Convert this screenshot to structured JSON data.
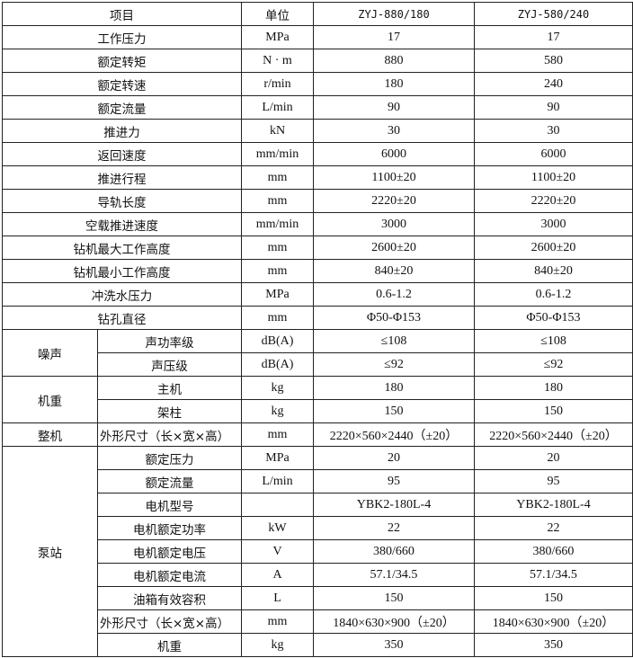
{
  "header": {
    "item": "项目",
    "unit": "单位",
    "model_a": "ZYJ-880/180",
    "model_b": "ZYJ-580/240"
  },
  "rows": [
    {
      "item": "工作压力",
      "unit": "MPa",
      "a": "17",
      "b": "17"
    },
    {
      "item": "额定转矩",
      "unit": "N · m",
      "a": "880",
      "b": "580"
    },
    {
      "item": "额定转速",
      "unit": "r/min",
      "a": "180",
      "b": "240"
    },
    {
      "item": "额定流量",
      "unit": "L/min",
      "a": "90",
      "b": "90"
    },
    {
      "item": "推进力",
      "unit": "kN",
      "a": "30",
      "b": "30"
    },
    {
      "item": "返回速度",
      "unit": "mm/min",
      "a": "6000",
      "b": "6000"
    },
    {
      "item": "推进行程",
      "unit": "mm",
      "a": "1100±20",
      "b": "1100±20"
    },
    {
      "item": "导轨长度",
      "unit": "mm",
      "a": "2220±20",
      "b": "2220±20"
    },
    {
      "item": "空载推进速度",
      "unit": "mm/min",
      "a": "3000",
      "b": "3000"
    },
    {
      "item": "钻机最大工作高度",
      "unit": "mm",
      "a": "2600±20",
      "b": "2600±20"
    },
    {
      "item": "钻机最小工作高度",
      "unit": "mm",
      "a": "840±20",
      "b": "840±20"
    },
    {
      "item": "冲洗水压力",
      "unit": "MPa",
      "a": "0.6-1.2",
      "b": "0.6-1.2"
    },
    {
      "item": "钻孔直径",
      "unit": "mm",
      "a": "Φ50-Φ153",
      "b": "Φ50-Φ153"
    }
  ],
  "groups": [
    {
      "label": "噪声",
      "rows": [
        {
          "item": "声功率级",
          "unit": "dB(A)",
          "a": "≤108",
          "b": "≤108"
        },
        {
          "item": "声压级",
          "unit": "dB(A)",
          "a": "≤92",
          "b": "≤92"
        }
      ]
    },
    {
      "label": "机重",
      "rows": [
        {
          "item": "主机",
          "unit": "kg",
          "a": "180",
          "b": "180"
        },
        {
          "item": "架柱",
          "unit": "kg",
          "a": "150",
          "b": "150"
        }
      ]
    },
    {
      "label": "整机",
      "rows": [
        {
          "item": "外形尺寸（长×宽×高）",
          "unit": "mm",
          "a": "2220×560×2440（±20）",
          "b": "2220×560×2440（±20）"
        }
      ]
    },
    {
      "label": "泵站",
      "rows": [
        {
          "item": "额定压力",
          "unit": "MPa",
          "a": "20",
          "b": "20"
        },
        {
          "item": "额定流量",
          "unit": "L/min",
          "a": "95",
          "b": "95"
        },
        {
          "item": "电机型号",
          "unit": "",
          "a": "YBK2-180L-4",
          "b": "YBK2-180L-4"
        },
        {
          "item": "电机额定功率",
          "unit": "kW",
          "a": "22",
          "b": "22"
        },
        {
          "item": "电机额定电压",
          "unit": "V",
          "a": "380/660",
          "b": "380/660"
        },
        {
          "item": "电机额定电流",
          "unit": "A",
          "a": "57.1/34.5",
          "b": "57.1/34.5"
        },
        {
          "item": "油箱有效容积",
          "unit": "L",
          "a": "150",
          "b": "150"
        },
        {
          "item": "外形尺寸（长×宽×高）",
          "unit": "mm",
          "a": "1840×630×900（±20）",
          "b": "1840×630×900（±20）"
        },
        {
          "item": "机重",
          "unit": "kg",
          "a": "350",
          "b": "350"
        }
      ]
    }
  ]
}
